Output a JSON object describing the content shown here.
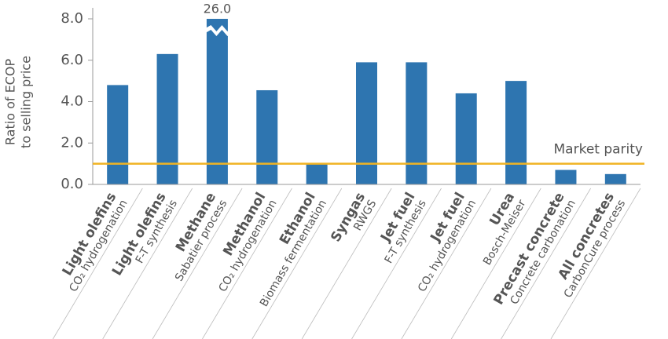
{
  "chart_data": {
    "type": "bar",
    "ylabel": [
      "Ratio of ECOP",
      "to selling price"
    ],
    "categories": [
      "Light olefins",
      "Light olefins",
      "Methane",
      "Methanol",
      "Ethanol",
      "Syngas",
      "Jet fuel",
      "Jet fuel",
      "Urea",
      "Precast concrete",
      "All concretes"
    ],
    "subtitles": [
      "CO₂ hydrogenation",
      "F-T synthesis",
      "Sabatier process",
      "CO₂ hydrogenation",
      "Biomass fermentation",
      "RWGS",
      "F-T synthesis",
      "CO₂ hydrogenation",
      "Bosch-Meiser",
      "Concrete carbonation",
      "CarbonCure process"
    ],
    "values": [
      4.8,
      6.3,
      26.0,
      4.55,
      1.0,
      5.9,
      5.9,
      4.4,
      5.0,
      0.7,
      0.5
    ],
    "value_labels": [
      null,
      null,
      "26.0",
      null,
      null,
      null,
      null,
      null,
      null,
      null,
      null
    ],
    "color": "#2e75b0",
    "ylim": [
      0,
      8
    ],
    "yticks": [
      {
        "value": 0,
        "label": "0.0"
      },
      {
        "value": 2,
        "label": "2.0"
      },
      {
        "value": 4,
        "label": "4.0"
      },
      {
        "value": 6,
        "label": "6.0"
      },
      {
        "value": 8,
        "label": "8.0"
      }
    ],
    "market_parity": {
      "label": "Market parity",
      "value": 1.0,
      "color": "#f0b323"
    }
  }
}
